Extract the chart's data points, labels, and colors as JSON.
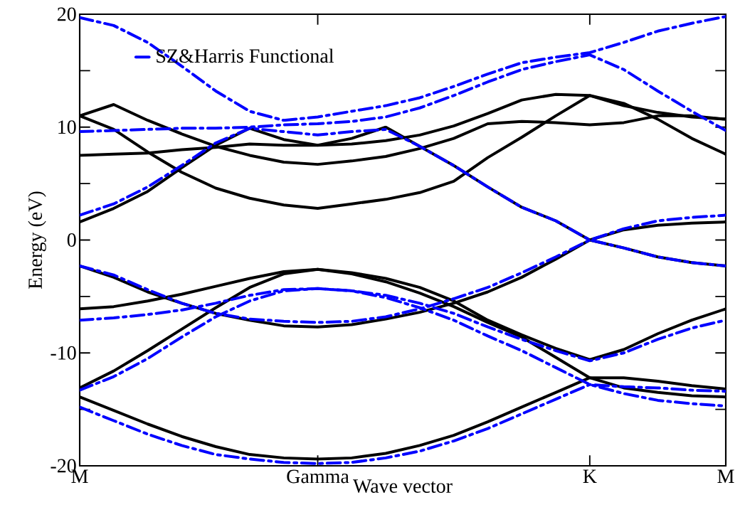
{
  "chart_data": {
    "type": "line",
    "xlabel": "Wave vector",
    "ylabel": "Energy (eV)",
    "categories": [
      "M",
      null,
      null,
      null,
      null,
      null,
      null,
      "Gamma",
      null,
      null,
      null,
      null,
      null,
      null,
      null,
      "K",
      null,
      null,
      null,
      "M"
    ],
    "ylim": [
      -20,
      20
    ],
    "yticks": [
      -20,
      {
        "value": -15,
        "label": null
      },
      -10,
      {
        "value": -5,
        "label": null
      },
      0,
      {
        "value": 5,
        "label": null
      },
      10,
      {
        "value": 15,
        "label": null
      },
      20
    ],
    "legend": "top left",
    "marker": "none",
    "series": [
      {
        "color": "#000000",
        "line_style": "solid",
        "values": [
          -13.9,
          -15.1,
          -16.3,
          -17.4,
          -18.3,
          -19.0,
          -19.3,
          -19.4,
          -19.3,
          -18.9,
          -18.2,
          -17.3,
          -16.1,
          -14.8,
          -13.5,
          -12.2,
          -12.2,
          -12.5,
          -12.9,
          -13.2
        ]
      },
      {
        "color": "#000000",
        "line_style": "solid",
        "values": [
          -13.1,
          -11.6,
          -9.8,
          -7.9,
          -6.0,
          -4.2,
          -3.0,
          -2.6,
          -3.0,
          -3.7,
          -4.7,
          -5.9,
          -7.3,
          -8.6,
          -10.4,
          -12.2,
          -13.1,
          -13.5,
          -13.8,
          -13.9
        ]
      },
      {
        "color": "#000000",
        "line_style": "solid",
        "values": [
          -2.3,
          -3.3,
          -4.6,
          -5.6,
          -6.5,
          -7.1,
          -7.6,
          -7.7,
          -7.5,
          -7.0,
          -6.4,
          -5.6,
          -4.6,
          -3.3,
          -1.7,
          0.0,
          0.9,
          1.3,
          1.5,
          1.6
        ]
      },
      {
        "color": "#000000",
        "line_style": "solid",
        "values": [
          -6.1,
          -5.9,
          -5.4,
          -4.8,
          -4.1,
          -3.4,
          -2.8,
          -2.6,
          -2.9,
          -3.4,
          -4.2,
          -5.4,
          -7.1,
          -8.4,
          -9.6,
          -10.6,
          -9.7,
          -8.3,
          -7.1,
          -6.1
        ]
      },
      {
        "color": "#000000",
        "line_style": "solid",
        "values": [
          1.6,
          2.8,
          4.3,
          6.4,
          8.4,
          9.9,
          8.9,
          8.4,
          9.0,
          10.0,
          8.3,
          6.6,
          4.7,
          2.9,
          1.7,
          0.0,
          -0.7,
          -1.5,
          -2.0,
          -2.3
        ]
      },
      {
        "color": "#000000",
        "line_style": "solid",
        "values": [
          11.0,
          9.8,
          7.8,
          6.0,
          4.6,
          3.7,
          3.1,
          2.8,
          3.2,
          3.6,
          4.2,
          5.2,
          7.3,
          9.1,
          11.0,
          12.8,
          11.9,
          11.3,
          10.9,
          10.7
        ]
      },
      {
        "color": "#000000",
        "line_style": "solid",
        "values": [
          11.0,
          12.0,
          10.6,
          9.4,
          8.3,
          7.5,
          6.9,
          6.7,
          7.0,
          7.4,
          8.1,
          9.0,
          10.3,
          10.5,
          10.4,
          10.2,
          10.4,
          11.0,
          11.0,
          10.7
        ]
      },
      {
        "color": "#000000",
        "line_style": "solid",
        "values": [
          7.5,
          7.6,
          7.7,
          8.0,
          8.2,
          8.5,
          8.4,
          8.4,
          8.5,
          8.8,
          9.3,
          10.1,
          11.2,
          12.4,
          12.9,
          12.8,
          12.1,
          10.7,
          9.0,
          7.6
        ]
      },
      {
        "name": "SZ&Harris Functional",
        "color": "#0000ff",
        "line_style": "dashed",
        "values": [
          -14.8,
          -16.0,
          -17.2,
          -18.2,
          -19.0,
          -19.4,
          -19.7,
          -19.8,
          -19.7,
          -19.3,
          -18.7,
          -17.8,
          -16.7,
          -15.4,
          -14.1,
          -12.8,
          -13.0,
          -13.1,
          -13.3,
          -13.4
        ]
      },
      {
        "color": "#0000ff",
        "line_style": "dashed",
        "values": [
          -13.3,
          -12.1,
          -10.5,
          -8.6,
          -6.8,
          -5.4,
          -4.5,
          -4.3,
          -4.5,
          -5.1,
          -6.0,
          -7.1,
          -8.5,
          -9.8,
          -11.3,
          -12.8,
          -13.6,
          -14.2,
          -14.5,
          -14.7
        ]
      },
      {
        "color": "#0000ff",
        "line_style": "dashed",
        "values": [
          -2.3,
          -3.1,
          -4.4,
          -5.6,
          -6.5,
          -7.0,
          -7.2,
          -7.3,
          -7.2,
          -6.8,
          -6.1,
          -5.2,
          -4.2,
          -2.9,
          -1.5,
          0.0,
          1.0,
          1.7,
          2.0,
          2.2
        ]
      },
      {
        "color": "#0000ff",
        "line_style": "dashed",
        "values": [
          -7.1,
          -6.9,
          -6.6,
          -6.2,
          -5.6,
          -4.9,
          -4.4,
          -4.3,
          -4.5,
          -4.9,
          -5.6,
          -6.5,
          -7.7,
          -8.8,
          -9.8,
          -10.7,
          -10.0,
          -8.8,
          -7.8,
          -7.1
        ]
      },
      {
        "color": "#0000ff",
        "line_style": "dashed",
        "values": [
          2.2,
          3.2,
          4.7,
          6.6,
          8.6,
          9.9,
          9.6,
          9.3,
          9.6,
          9.8,
          8.3,
          6.6,
          4.7,
          2.9,
          1.7,
          0.0,
          -0.7,
          -1.5,
          -2.0,
          -2.3
        ]
      },
      {
        "color": "#0000ff",
        "line_style": "dashed",
        "values": [
          19.7,
          19.0,
          17.5,
          15.4,
          13.2,
          11.4,
          10.6,
          10.9,
          11.4,
          11.9,
          12.6,
          13.6,
          14.7,
          15.7,
          16.2,
          16.6,
          17.5,
          18.5,
          19.2,
          19.8
        ]
      },
      {
        "color": "#0000ff",
        "line_style": "dashed",
        "values": [
          9.6,
          9.7,
          9.8,
          9.9,
          9.9,
          10.0,
          10.2,
          10.3,
          10.5,
          10.9,
          11.7,
          12.8,
          14.0,
          15.1,
          15.8,
          16.4,
          15.1,
          13.2,
          11.4,
          9.7
        ]
      }
    ]
  }
}
